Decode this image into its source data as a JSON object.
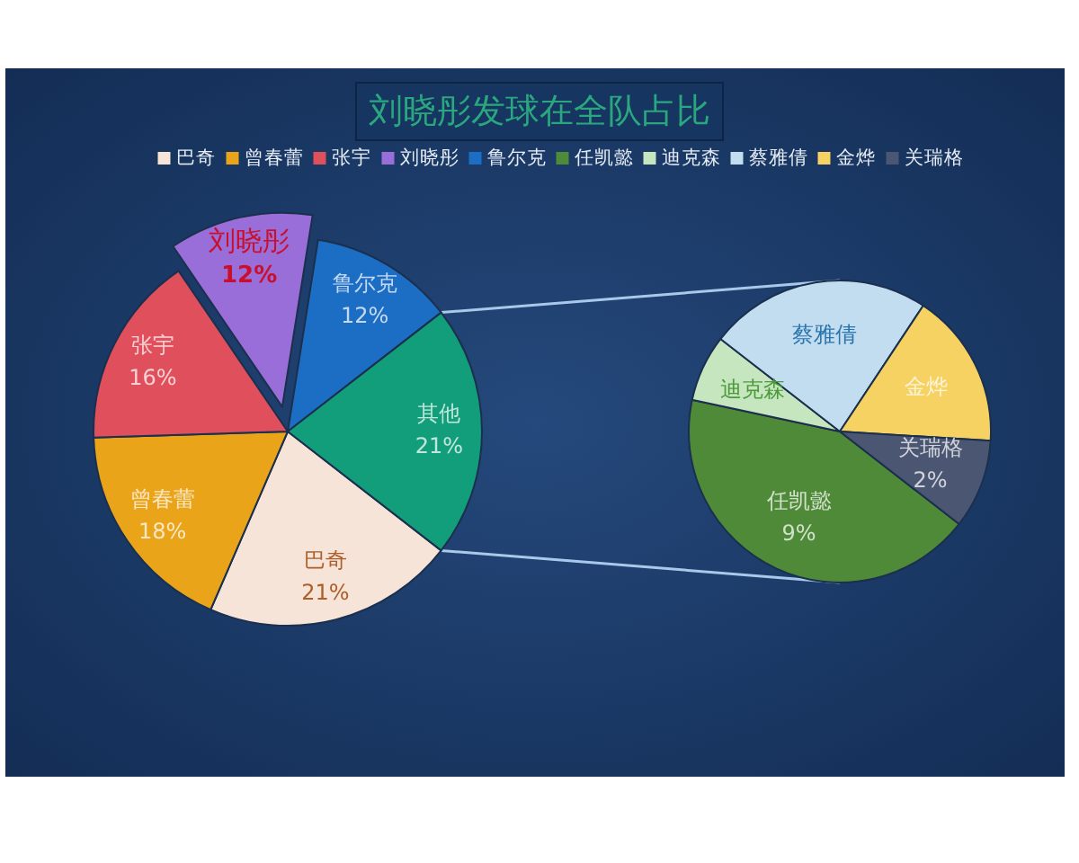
{
  "chart_data": [
    {
      "type": "pie",
      "title": "刘晓彤发球在全队占比",
      "legend": "top",
      "categories": [
        "巴奇",
        "曾春蕾",
        "张宇",
        "刘晓彤",
        "鲁尔克",
        "其他"
      ],
      "values": [
        21,
        18,
        16,
        12,
        12,
        21
      ],
      "colors": [
        "#f6e4d8",
        "#e9a419",
        "#e0505c",
        "#9a6ed8",
        "#1b6ec4",
        "#129e7a"
      ],
      "value_labels": [
        "21%",
        "18%",
        "16%",
        "12%",
        "12%",
        "21%"
      ]
    },
    {
      "type": "pie",
      "legend": "top",
      "categories": [
        "任凯懿",
        "迪克森",
        "蔡雅倩",
        "金烨",
        "关瑞格"
      ],
      "values": [
        9,
        1.5,
        5,
        3.5,
        2
      ],
      "colors": [
        "#4f8a38",
        "#c6e6bf",
        "#c2dcf0",
        "#f6d262",
        "#4a5672"
      ],
      "value_labels": [
        "9%",
        null,
        null,
        null,
        "2%"
      ]
    }
  ]
}
